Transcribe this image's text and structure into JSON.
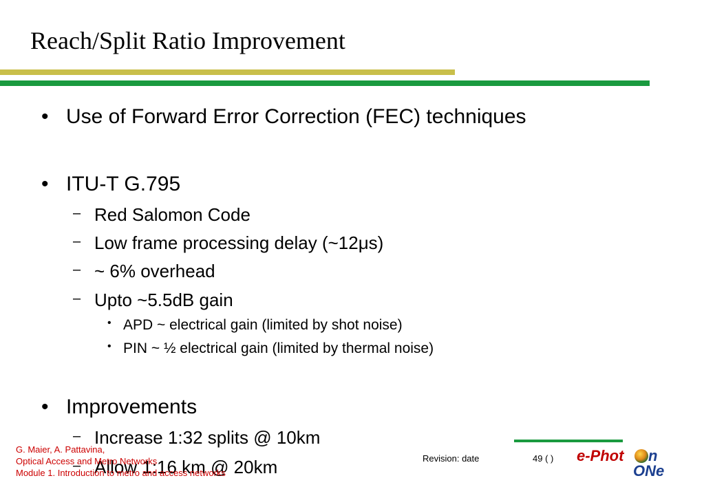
{
  "slide": {
    "title": "Reach/Split Ratio Improvement",
    "bullets": [
      {
        "marker": "•",
        "text": "Use of Forward Error Correction (FEC) techniques"
      },
      {
        "marker": "•",
        "text": "ITU-T G.795"
      },
      {
        "marker": "–",
        "text": "Red Salomon Code"
      },
      {
        "marker": "–",
        "text": "Low frame processing delay (~12μs)"
      },
      {
        "marker": "–",
        "text": "~ 6% overhead"
      },
      {
        "marker": "–",
        "text": "Upto ~5.5dB gain"
      },
      {
        "marker": "•",
        "text": "APD ~ electrical gain (limited by shot noise)"
      },
      {
        "marker": "•",
        "text": "PIN ~  ½ electrical gain (limited by thermal noise)"
      },
      {
        "marker": "•",
        "text": "Improvements"
      },
      {
        "marker": "–",
        "text": "Increase 1:32 splits @ 10km"
      },
      {
        "marker": "–",
        "text": "Allow 1:16 km @ 20km"
      }
    ]
  },
  "footer": {
    "authors": "G. Maier, A. Pattavina,",
    "course": "Optical Access and Metro Networks",
    "module": "Module 1. Introduction to metro and access networks",
    "revision": "Revision: date",
    "page": "49 (   )"
  },
  "logo": {
    "top_text": "e-Phot",
    "top_end": "n",
    "bottom_text": "ONe"
  },
  "colors": {
    "rule_yellow": "#c9bf4a",
    "rule_green": "#1a9a3f",
    "footer_text": "#cc0000",
    "logo_red": "#c00000",
    "logo_blue": "#1b3f8f"
  }
}
